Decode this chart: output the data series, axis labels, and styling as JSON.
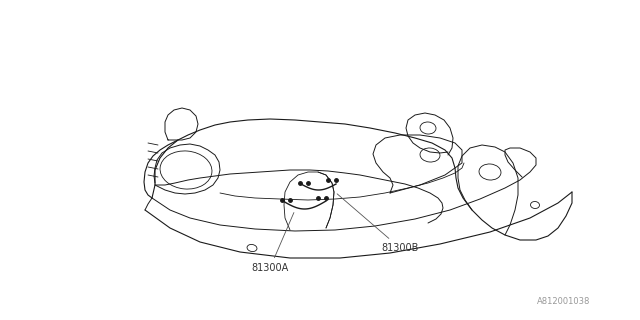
{
  "background_color": "#ffffff",
  "line_color": "#1a1a1a",
  "dim_color": "#666666",
  "diagram_id": "A812001038",
  "label_81300A": "81300A",
  "label_81300B": "81300B",
  "figsize": [
    6.4,
    3.2
  ],
  "dpi": 100
}
